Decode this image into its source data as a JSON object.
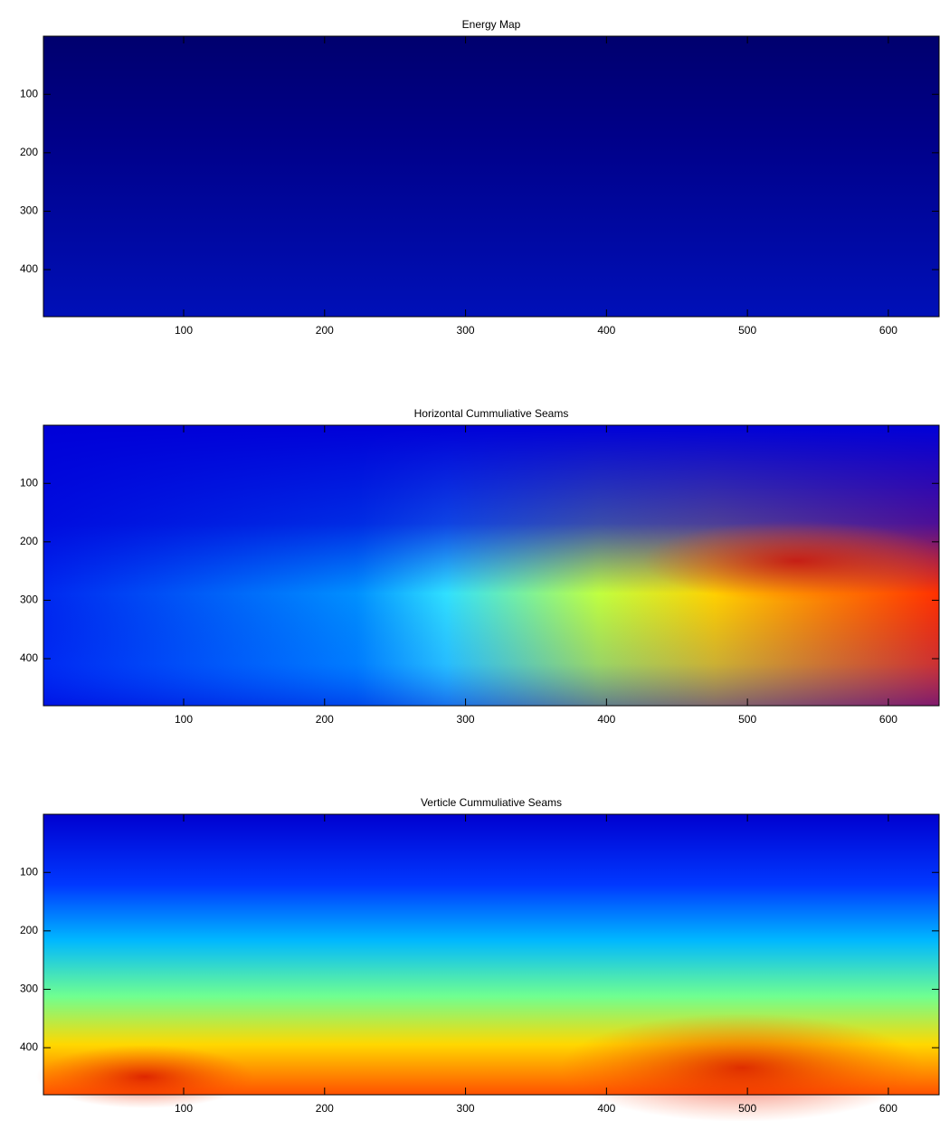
{
  "chart_data": [
    {
      "type": "image",
      "title": "Energy Map",
      "xlim": [
        0.5,
        636
      ],
      "ylim": [
        0.5,
        480.5
      ],
      "y_reversed": true,
      "xticks": [
        100,
        200,
        300,
        400,
        500,
        600
      ],
      "yticks": [
        100,
        200,
        300,
        400
      ]
    },
    {
      "type": "image",
      "title": "Horizontal Cummuliative Seams",
      "xlim": [
        0.5,
        636
      ],
      "ylim": [
        0.5,
        480.5
      ],
      "y_reversed": true,
      "xticks": [
        100,
        200,
        300,
        400,
        500,
        600
      ],
      "yticks": [
        100,
        200,
        300,
        400
      ]
    },
    {
      "type": "image",
      "title": "Verticle Cummuliative Seams",
      "xlim": [
        0.5,
        636
      ],
      "ylim": [
        0.5,
        480.5
      ],
      "y_reversed": true,
      "xticks": [
        100,
        200,
        300,
        400,
        500,
        600
      ],
      "yticks": [
        100,
        200,
        300,
        400
      ]
    }
  ]
}
